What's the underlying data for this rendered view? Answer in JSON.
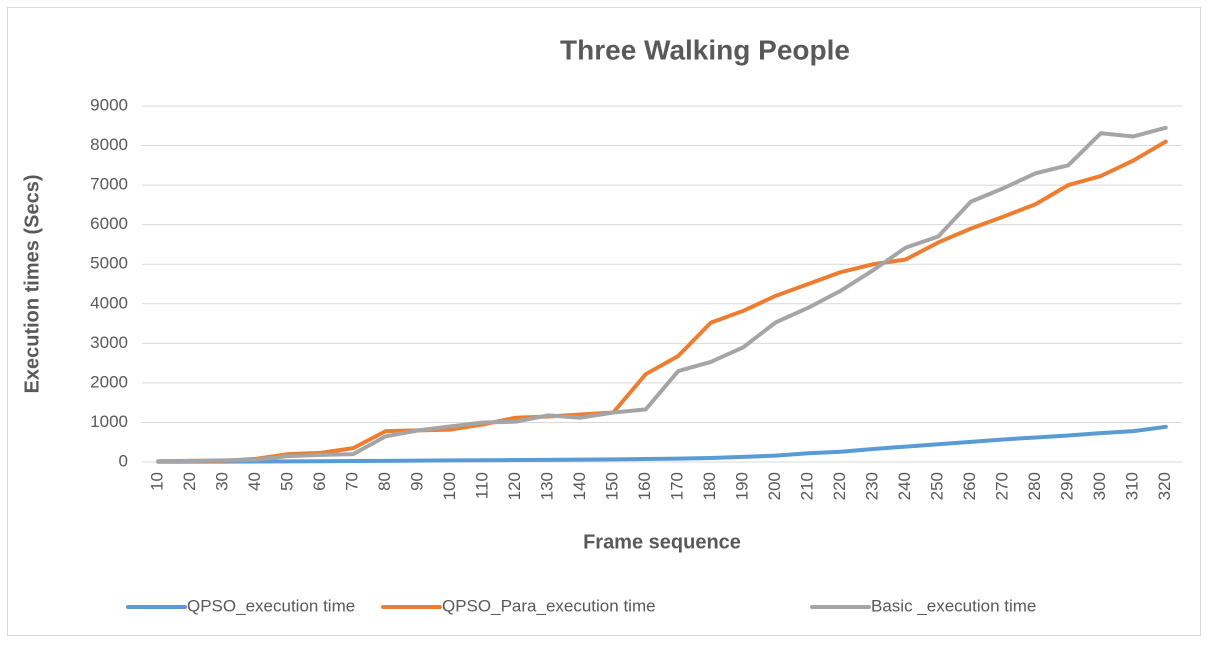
{
  "chart_data": {
    "type": "line",
    "title": "Three Walking People",
    "x_label": "Frame sequence",
    "y_label": "Execution times (Secs)",
    "categories": [
      10,
      20,
      30,
      40,
      50,
      60,
      70,
      80,
      90,
      100,
      110,
      120,
      130,
      140,
      150,
      160,
      170,
      180,
      190,
      200,
      210,
      220,
      230,
      240,
      250,
      260,
      270,
      280,
      290,
      300,
      310,
      320
    ],
    "series": [
      {
        "name": "QPSO_execution time",
        "color": "#5b9bd5",
        "values": [
          5,
          8,
          10,
          12,
          15,
          20,
          25,
          30,
          35,
          40,
          45,
          50,
          55,
          60,
          65,
          75,
          85,
          100,
          130,
          160,
          220,
          260,
          330,
          390,
          450,
          510,
          570,
          620,
          670,
          730,
          780,
          890
        ]
      },
      {
        "name": "QPSO_Para_execution time",
        "color": "#ed7d31",
        "values": [
          20,
          30,
          30,
          80,
          200,
          230,
          350,
          780,
          800,
          820,
          950,
          1120,
          1150,
          1200,
          1250,
          2220,
          2680,
          3520,
          3820,
          4200,
          4500,
          4800,
          5000,
          5120,
          5550,
          5900,
          6200,
          6520,
          7000,
          7230,
          7620,
          8100
        ]
      },
      {
        "name": "Basic _execution time",
        "color": "#a5a5a5",
        "values": [
          20,
          30,
          40,
          60,
          150,
          180,
          200,
          650,
          800,
          900,
          1000,
          1020,
          1180,
          1120,
          1250,
          1330,
          2300,
          2530,
          2900,
          3530,
          3900,
          4330,
          4850,
          5420,
          5700,
          6580,
          6920,
          7300,
          7500,
          8310,
          8230,
          8450
        ]
      }
    ],
    "ylim": [
      0,
      9000
    ],
    "yticks": [
      0,
      1000,
      2000,
      3000,
      4000,
      5000,
      6000,
      7000,
      8000,
      9000
    ],
    "grid": true,
    "legend": "bottom"
  }
}
